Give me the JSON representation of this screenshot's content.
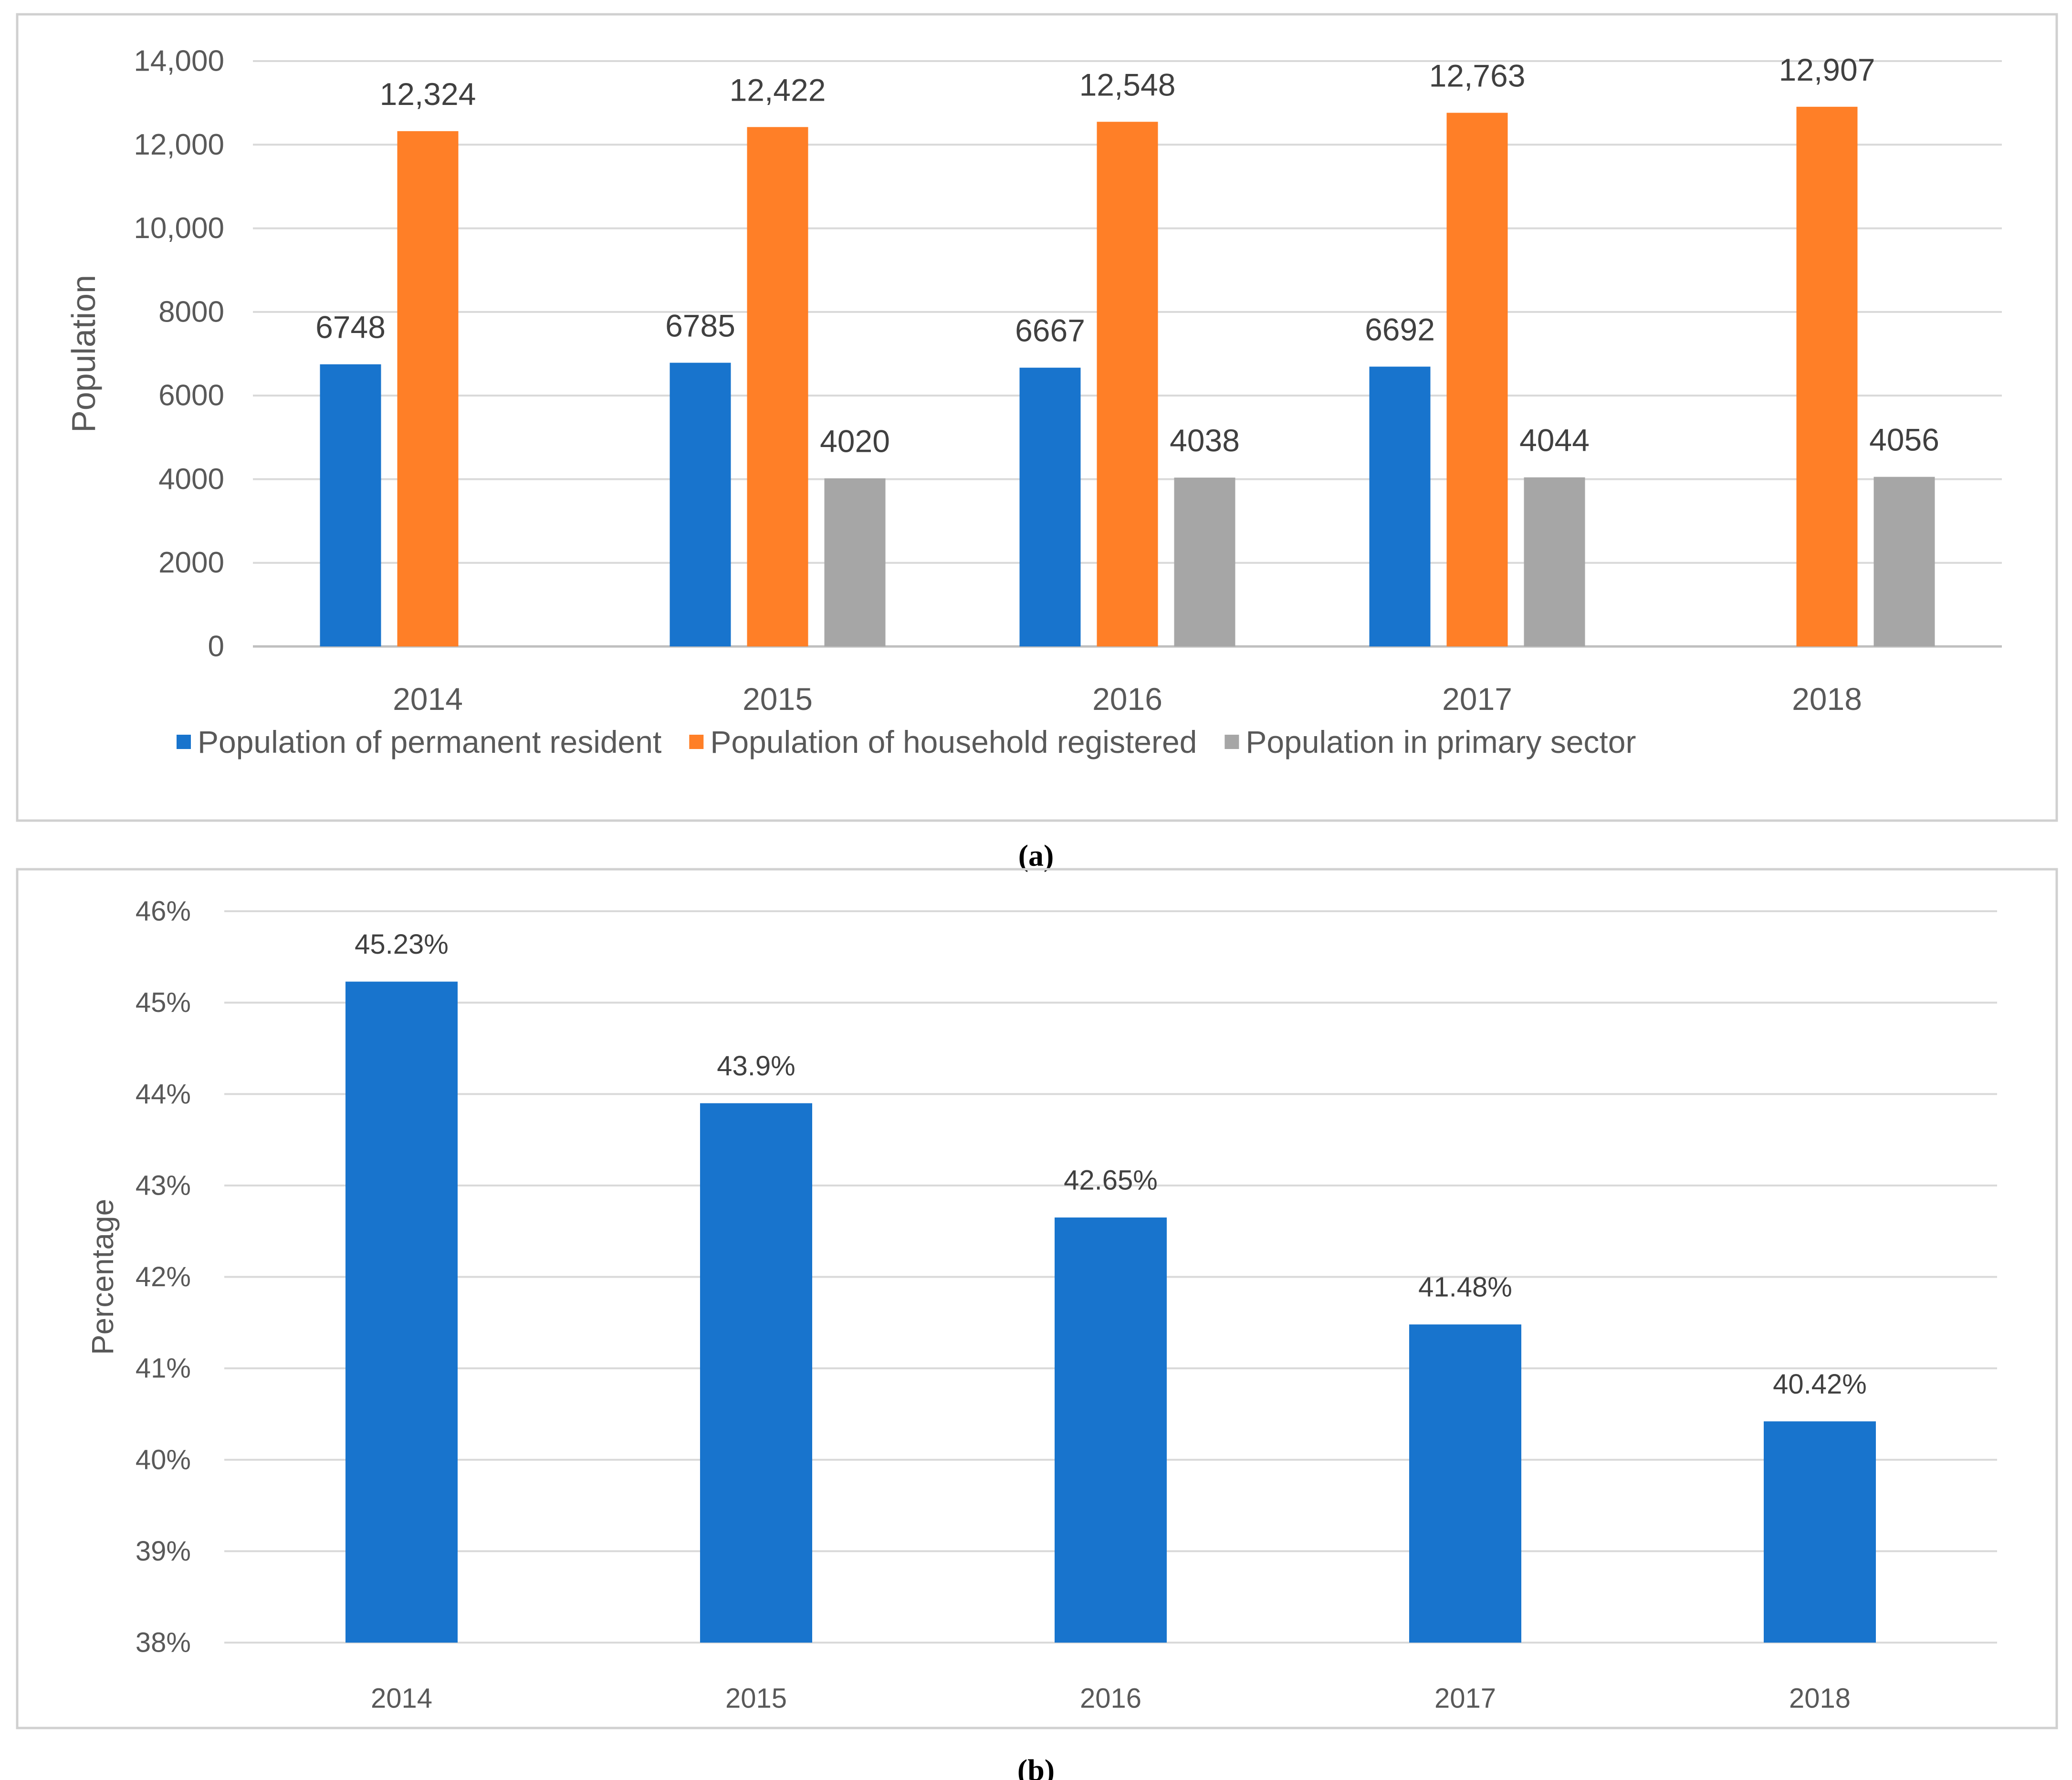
{
  "chart_data": [
    {
      "id": "a",
      "type": "bar",
      "caption": "(a)",
      "categories": [
        "2014",
        "2015",
        "2016",
        "2017",
        "2018"
      ],
      "ylabel": "Population",
      "xlabel": "",
      "ylim": [
        0,
        14000
      ],
      "yticks": [
        {
          "value": 0,
          "label": "0"
        },
        {
          "value": 2000,
          "label": "2000"
        },
        {
          "value": 4000,
          "label": "4000"
        },
        {
          "value": 6000,
          "label": "6000"
        },
        {
          "value": 8000,
          "label": "8000"
        },
        {
          "value": 10000,
          "label": "10,000"
        },
        {
          "value": 12000,
          "label": "12,000"
        },
        {
          "value": 14000,
          "label": "14,000"
        }
      ],
      "grid": true,
      "legend_position": "bottom",
      "series": [
        {
          "name": "Population of permanent resident",
          "color": "#1874cd",
          "values": [
            6748,
            6785,
            6667,
            6692,
            null
          ],
          "labels": [
            "6748",
            "6785",
            "6667",
            "6692",
            ""
          ]
        },
        {
          "name": "Population of household registered",
          "color": "#ff7f27",
          "values": [
            12324,
            12422,
            12548,
            12763,
            12907
          ],
          "labels": [
            "12,324",
            "12,422",
            "12,548",
            "12,763",
            "12,907"
          ]
        },
        {
          "name": "Population in primary sector",
          "color": "#a6a6a6",
          "values": [
            null,
            4020,
            4038,
            4044,
            4056
          ],
          "labels": [
            "",
            "4020",
            "4038",
            "4044",
            "4056"
          ]
        }
      ]
    },
    {
      "id": "b",
      "type": "bar",
      "caption": "(b)",
      "categories": [
        "2014",
        "2015",
        "2016",
        "2017",
        "2018"
      ],
      "ylabel": "Percentage",
      "xlabel": "",
      "ylim": [
        38,
        46
      ],
      "yticks": [
        {
          "value": 38,
          "label": "38%"
        },
        {
          "value": 39,
          "label": "39%"
        },
        {
          "value": 40,
          "label": "40%"
        },
        {
          "value": 41,
          "label": "41%"
        },
        {
          "value": 42,
          "label": "42%"
        },
        {
          "value": 43,
          "label": "43%"
        },
        {
          "value": 44,
          "label": "44%"
        },
        {
          "value": 45,
          "label": "45%"
        },
        {
          "value": 46,
          "label": "46%"
        }
      ],
      "grid": true,
      "series": [
        {
          "name": "Percentage",
          "color": "#1874cd",
          "values": [
            45.23,
            43.9,
            42.65,
            41.48,
            40.42
          ],
          "labels": [
            "45.23%",
            "43.9%",
            "42.65%",
            "41.48%",
            "40.42%"
          ]
        }
      ]
    }
  ]
}
